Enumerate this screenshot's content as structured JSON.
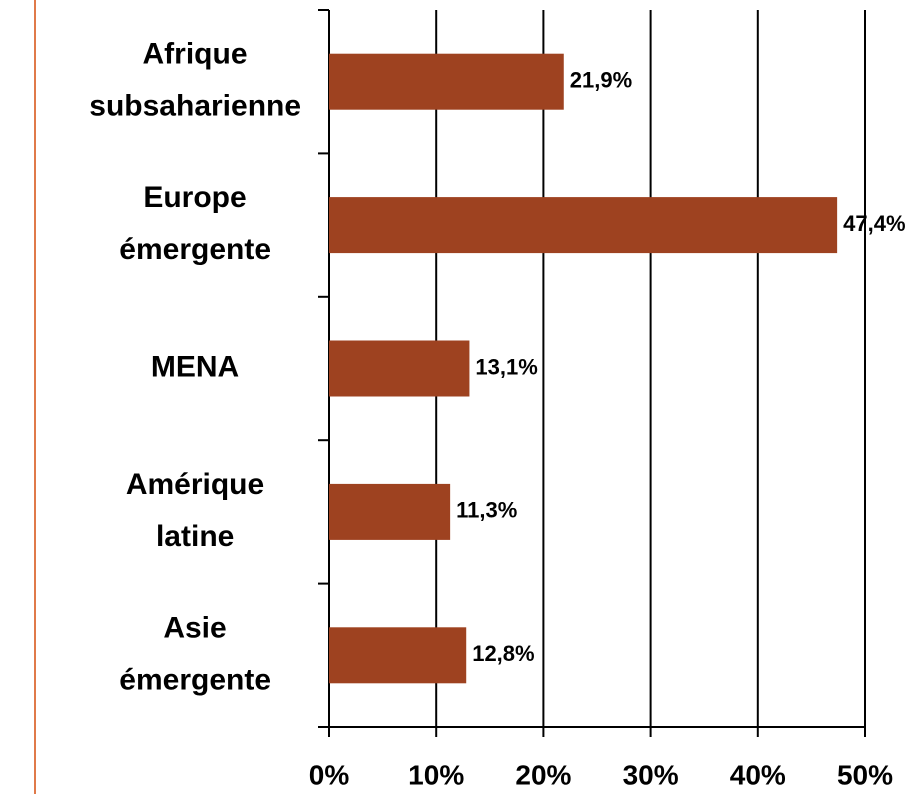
{
  "chart_data": {
    "type": "bar",
    "orientation": "horizontal",
    "categories": [
      "Afrique subsaharienne",
      "Europe émergente",
      "MENA",
      "Amérique latine",
      "Asie émergente"
    ],
    "values": [
      21.9,
      47.4,
      13.1,
      11.3,
      12.8
    ],
    "value_labels": [
      "21,9%",
      "47,4%",
      "13,1%",
      "11,3%",
      "12,8%"
    ],
    "color": "#9e4220",
    "xlim": [
      0,
      50
    ],
    "xticks": [
      {
        "value": 0,
        "label": "0%"
      },
      {
        "value": 10,
        "label": "10%"
      },
      {
        "value": 20,
        "label": "20%"
      },
      {
        "value": 30,
        "label": "30%"
      },
      {
        "value": 40,
        "label": "40%"
      },
      {
        "value": 50,
        "label": "50%"
      }
    ],
    "grid": true
  }
}
